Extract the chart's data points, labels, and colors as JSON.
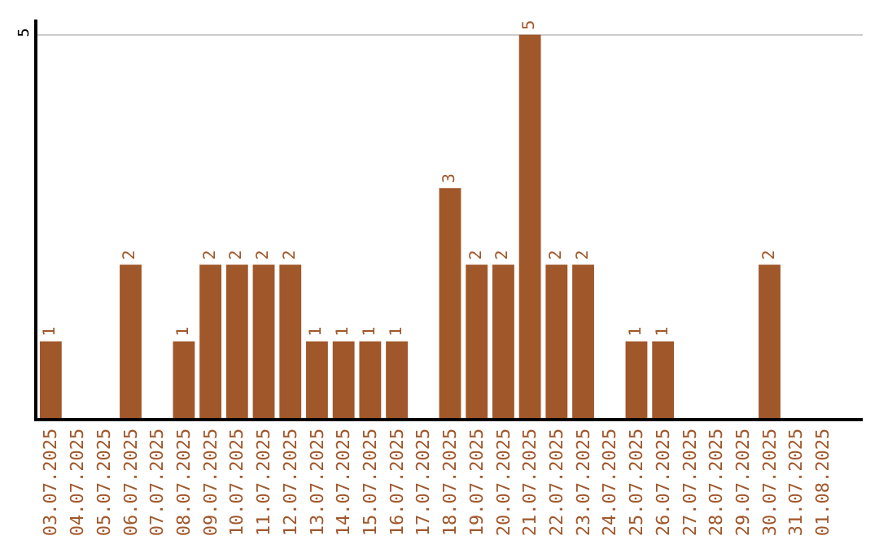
{
  "chart_data": {
    "type": "bar",
    "categories": [
      "03.07.2025",
      "04.07.2025",
      "05.07.2025",
      "06.07.2025",
      "07.07.2025",
      "08.07.2025",
      "09.07.2025",
      "10.07.2025",
      "11.07.2025",
      "12.07.2025",
      "13.07.2025",
      "14.07.2025",
      "15.07.2025",
      "16.07.2025",
      "17.07.2025",
      "18.07.2025",
      "19.07.2025",
      "20.07.2025",
      "21.07.2025",
      "22.07.2025",
      "23.07.2025",
      "24.07.2025",
      "25.07.2025",
      "26.07.2025",
      "27.07.2025",
      "28.07.2025",
      "29.07.2025",
      "30.07.2025",
      "31.07.2025",
      "01.08.2025"
    ],
    "values": [
      1,
      0,
      0,
      2,
      0,
      1,
      2,
      2,
      2,
      2,
      1,
      1,
      1,
      1,
      0,
      3,
      2,
      2,
      5,
      2,
      2,
      0,
      1,
      1,
      0,
      0,
      0,
      2,
      0,
      0
    ],
    "value_labels": [
      "1",
      null,
      null,
      "2",
      null,
      "1",
      "2",
      "2",
      "2",
      "2",
      "1",
      "1",
      "1",
      "1",
      null,
      "3",
      "2",
      "2",
      "5",
      "2",
      "2",
      null,
      "1",
      "1",
      null,
      null,
      null,
      "2",
      null,
      null
    ],
    "color": "#a0572a",
    "ylim": [
      0,
      5.2
    ],
    "yticks": [
      5
    ],
    "grid": "y",
    "legend": false
  }
}
